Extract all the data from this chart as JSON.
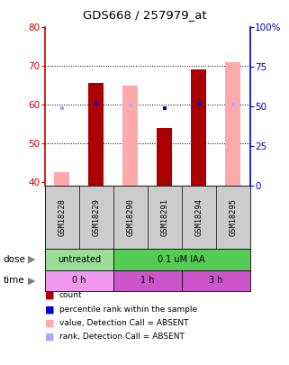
{
  "title": "GDS668 / 257979_at",
  "samples": [
    "GSM18228",
    "GSM18229",
    "GSM18290",
    "GSM18291",
    "GSM18294",
    "GSM18295"
  ],
  "count_values": [
    null,
    65.5,
    null,
    54.0,
    69.0,
    null
  ],
  "count_absent_values": [
    42.5,
    null,
    65.0,
    null,
    null,
    71.0
  ],
  "rank_values_pct": [
    null,
    52.0,
    null,
    49.0,
    52.0,
    null
  ],
  "rank_absent_values_pct": [
    49.0,
    null,
    50.5,
    null,
    null,
    51.5
  ],
  "ylim_left": [
    39,
    80
  ],
  "ylim_right": [
    0,
    100
  ],
  "yticks_left": [
    40,
    50,
    60,
    70,
    80
  ],
  "yticks_right": [
    0,
    25,
    50,
    75,
    100
  ],
  "yticklabels_right": [
    "0",
    "25",
    "50",
    "75",
    "100%"
  ],
  "left_axis_color": "#cc0000",
  "right_axis_color": "#0000cc",
  "count_color": "#aa0000",
  "count_absent_color": "#ffaaaa",
  "rank_color": "#0000cc",
  "rank_absent_color": "#aaaaff",
  "plot_bg_color": "#ffffff",
  "sample_area_color": "#cccccc",
  "dose_untreated_color": "#99dd99",
  "dose_treated_color": "#55cc55",
  "time_0h_color": "#ee99ee",
  "time_1h_color": "#cc55cc",
  "time_3h_color": "#cc55cc",
  "legend_items": [
    {
      "label": "count",
      "color": "#aa0000"
    },
    {
      "label": "percentile rank within the sample",
      "color": "#0000cc"
    },
    {
      "label": "value, Detection Call = ABSENT",
      "color": "#ffaaaa"
    },
    {
      "label": "rank, Detection Call = ABSENT",
      "color": "#aaaaff"
    }
  ]
}
